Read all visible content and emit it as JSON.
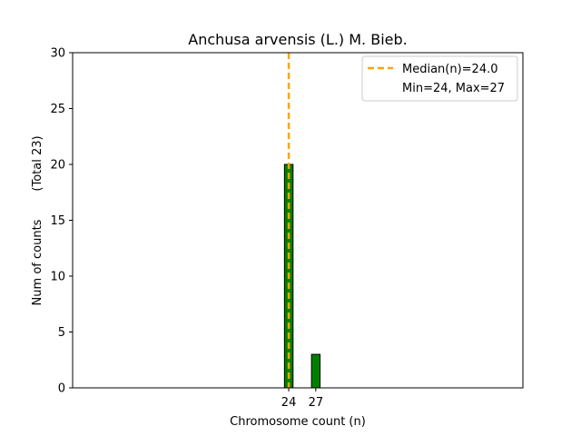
{
  "chart_data": {
    "type": "bar",
    "title": "Anchusa arvensis (L.) M. Bieb.",
    "xlabel": "Chromosome count (n)",
    "ylabel": "Num of counts",
    "ylabel_total": "(Total 23)",
    "ylim": [
      0,
      30
    ],
    "yticks": [
      0,
      5,
      10,
      15,
      20,
      25,
      30
    ],
    "xlim": [
      0,
      50
    ],
    "xticks": [
      24,
      27
    ],
    "bars": [
      {
        "x": 24,
        "value": 20
      },
      {
        "x": 27,
        "value": 3
      }
    ],
    "median": 24.0,
    "bar_color": "#008000",
    "median_color": "#FFA500",
    "legend": {
      "placement": "top-right",
      "entries": [
        "Median(n)=24.0",
        "Min=24, Max=27"
      ]
    },
    "grid": false
  }
}
